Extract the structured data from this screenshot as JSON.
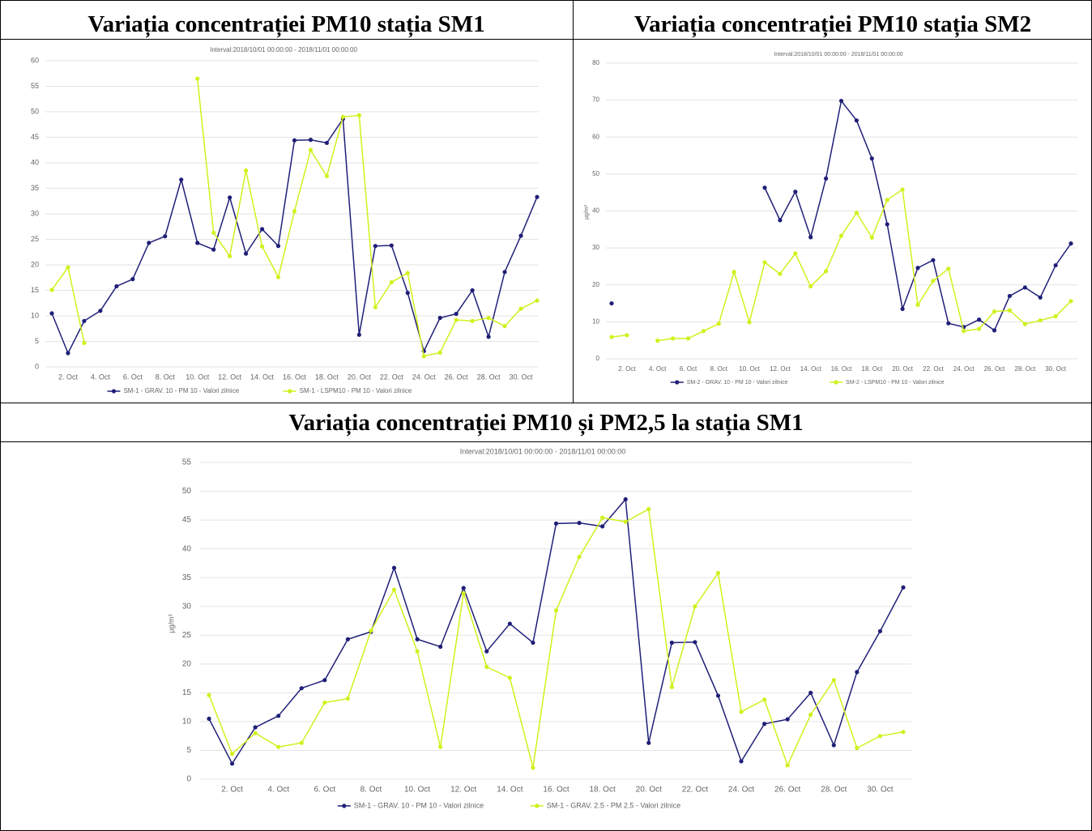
{
  "chart_data": [
    {
      "type": "line",
      "title": "Variația concentrației PM10 stația SM1",
      "subtitle": "Interval:2018/10/01 00:00:00 - 2018/11/01 00:00:00",
      "categories": [
        null,
        "2. Oct",
        null,
        "4. Oct",
        null,
        "6. Oct",
        null,
        "8. Oct",
        null,
        "10. Oct",
        null,
        "12. Oct",
        null,
        "14. Oct",
        null,
        "16. Oct",
        null,
        "18. Oct",
        null,
        "20. Oct",
        null,
        "22. Oct",
        null,
        "24. Oct",
        null,
        "26. Oct",
        null,
        "28. Oct",
        null,
        "30. Oct",
        null
      ],
      "series": [
        {
          "name": "SM-1 - GRAV. 10 - PM 10 - Valori zilnice",
          "color": "#1f1f78",
          "values": [
            10.5,
            2.7,
            9.0,
            11.0,
            15.8,
            17.2,
            24.3,
            25.6,
            36.7,
            24.3,
            23.0,
            33.2,
            22.2,
            27.0,
            23.7,
            44.4,
            44.5,
            43.9,
            48.6,
            6.3,
            23.7,
            23.8,
            14.5,
            3.1,
            9.6,
            10.4,
            15.0,
            5.9,
            18.6,
            25.7,
            33.3
          ]
        },
        {
          "name": "SM-1 - LSPM10 - PM 10 - Valori zilnice",
          "color": "#d2f01c",
          "values": [
            15.1,
            19.5,
            4.7,
            null,
            null,
            null,
            null,
            null,
            null,
            56.5,
            26.3,
            21.7,
            38.5,
            23.6,
            17.6,
            30.5,
            42.5,
            37.4,
            49.0,
            49.3,
            11.7,
            16.6,
            18.4,
            2.1,
            2.8,
            9.2,
            9.0,
            9.6,
            8.0,
            11.4,
            13.0
          ]
        }
      ],
      "ylim": [
        0,
        60
      ],
      "yticks": [
        0,
        5,
        10,
        15,
        20,
        25,
        30,
        35,
        40,
        45,
        50,
        55,
        60
      ],
      "grid": true
    },
    {
      "type": "line",
      "title": "Variația concentrației PM10 stația SM2",
      "subtitle": "Interval:2018/10/01 00:00:00 - 2018/11/01 00:00:00",
      "y_label": "µg/m³",
      "categories": [
        null,
        "2. Oct",
        null,
        "4. Oct",
        null,
        "6. Oct",
        null,
        "8. Oct",
        null,
        "10. Oct",
        null,
        "12. Oct",
        null,
        "14. Oct",
        null,
        "16. Oct",
        null,
        "18. Oct",
        null,
        "20. Oct",
        null,
        "22. Oct",
        null,
        "24. Oct",
        null,
        "26. Oct",
        null,
        "28. Oct",
        null,
        "30. Oct",
        null
      ],
      "series": [
        {
          "name": "SM-2 - GRAV. 10 - PM 10 - Valori zilnice",
          "color": "#1f1f78",
          "values": [
            15.0,
            null,
            null,
            null,
            null,
            null,
            null,
            null,
            null,
            null,
            46.3,
            37.5,
            45.2,
            32.9,
            48.8,
            69.8,
            64.5,
            54.2,
            36.4,
            13.5,
            24.6,
            26.7,
            9.6,
            8.6,
            10.6,
            7.7,
            17.0,
            19.3,
            16.6,
            25.3,
            31.2
          ]
        },
        {
          "name": "SM-2 - LSPM10 - PM 10 - Valori zilnice",
          "color": "#d2f01c",
          "values": [
            5.9,
            6.4,
            null,
            4.9,
            5.5,
            5.5,
            7.5,
            9.5,
            23.5,
            9.9,
            26.1,
            23.0,
            28.5,
            19.6,
            23.7,
            33.3,
            39.5,
            32.8,
            43.0,
            45.8,
            14.6,
            21.1,
            24.4,
            7.5,
            8.1,
            12.8,
            13.1,
            9.4,
            10.4,
            11.5,
            15.6
          ]
        }
      ],
      "ylim": [
        0,
        80
      ],
      "yticks": [
        0,
        10,
        20,
        30,
        40,
        50,
        60,
        70,
        80
      ],
      "grid": true
    },
    {
      "type": "line",
      "title": "Variația concentrației PM10 și PM2,5 la stația SM1",
      "subtitle": "Interval:2018/10/01 00:00:00 - 2018/11/01 00:00:00",
      "y_label": "µg/m³",
      "categories": [
        null,
        "2. Oct",
        null,
        "4. Oct",
        null,
        "6. Oct",
        null,
        "8. Oct",
        null,
        "10. Oct",
        null,
        "12. Oct",
        null,
        "14. Oct",
        null,
        "16. Oct",
        null,
        "18. Oct",
        null,
        "20. Oct",
        null,
        "22. Oct",
        null,
        "24. Oct",
        null,
        "26. Oct",
        null,
        "28. Oct",
        null,
        "30. Oct",
        null
      ],
      "series": [
        {
          "name": "SM-1 - GRAV. 10 - PM 10 - Valori zilnice",
          "color": "#1f1f78",
          "values": [
            10.5,
            2.7,
            9.0,
            11.0,
            15.8,
            17.2,
            24.3,
            25.6,
            36.7,
            24.3,
            23.0,
            33.2,
            22.2,
            27.0,
            23.7,
            44.4,
            44.5,
            43.9,
            48.6,
            6.3,
            23.7,
            23.8,
            14.5,
            3.1,
            9.6,
            10.4,
            15.0,
            5.9,
            18.6,
            25.7,
            33.3
          ]
        },
        {
          "name": "SM-1 - GRAV. 2.5 - PM 2.5 - Valori zilnice",
          "color": "#d2f01c",
          "values": [
            14.6,
            4.4,
            8.0,
            5.6,
            6.3,
            13.3,
            14.0,
            25.8,
            32.9,
            22.2,
            5.6,
            32.3,
            19.5,
            17.6,
            2.0,
            29.3,
            38.6,
            45.4,
            44.7,
            46.9,
            16.0,
            30.0,
            35.8,
            11.7,
            13.8,
            2.4,
            11.2,
            17.2,
            5.4,
            7.5,
            8.2
          ]
        }
      ],
      "ylim": [
        0,
        55
      ],
      "yticks": [
        0,
        5,
        10,
        15,
        20,
        25,
        30,
        35,
        40,
        45,
        50,
        55
      ],
      "grid": true
    }
  ]
}
